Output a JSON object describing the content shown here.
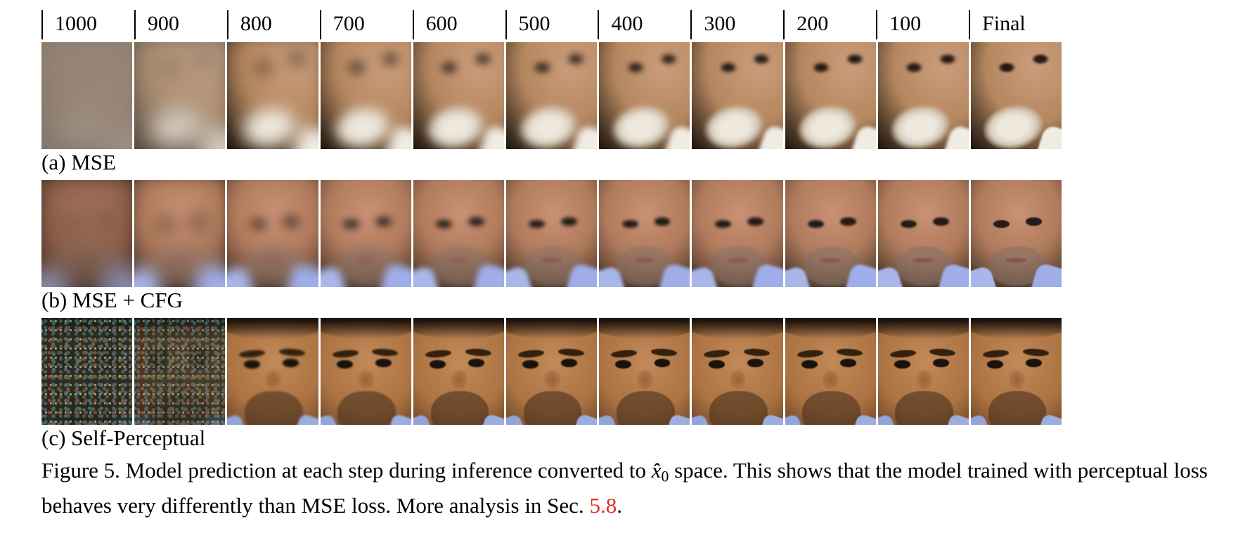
{
  "header": {
    "timesteps": [
      "1000",
      "900",
      "800",
      "700",
      "600",
      "500",
      "400",
      "300",
      "200",
      "100",
      "Final"
    ]
  },
  "rows": [
    {
      "id": "a",
      "label": "(a) MSE",
      "description": "Portrait sequence of an elderly man with a white mustache emerging from heavy blur; first frames are a uniform brown-gray haze",
      "blur": [
        18,
        14,
        11,
        8,
        6,
        5,
        4,
        3,
        2.5,
        2,
        1.2
      ],
      "wash": [
        "rgba(146,131,118,0.88)",
        "rgba(165,152,140,0.42)",
        null,
        null,
        null,
        null,
        null,
        null,
        null,
        null,
        null
      ],
      "noise": [
        0,
        0,
        0,
        0,
        0,
        0,
        0,
        0,
        0,
        0,
        0
      ]
    },
    {
      "id": "b",
      "label": "(b) MSE + CFG",
      "description": "Portrait sequence of a smiling man with shaved head, gray stubble and light-blue shirt emerging from dark blur",
      "blur": [
        16,
        12,
        8,
        5.5,
        4,
        3,
        2.5,
        2,
        1.6,
        1.3,
        0.8
      ],
      "wash": [
        "rgba(80,50,40,0.3)",
        null,
        null,
        null,
        null,
        null,
        null,
        null,
        null,
        null,
        null
      ],
      "noise": [
        0,
        0,
        0,
        0,
        0,
        0,
        0,
        0,
        0,
        0,
        0
      ]
    },
    {
      "id": "c",
      "label": "(c) Self-Perceptual",
      "description": "First two frames are mottled multicolor noise; from step 800 a sharp portrait of a dark-haired man with thick brows and beard stubble",
      "blur": [
        5,
        5,
        1.5,
        1,
        0.8,
        0.7,
        0.6,
        0.6,
        0.5,
        0.5,
        0.4
      ],
      "wash": [
        null,
        null,
        null,
        null,
        null,
        null,
        null,
        null,
        null,
        null,
        null
      ],
      "noise": [
        0.88,
        0.72,
        0,
        0,
        0,
        0,
        0,
        0,
        0,
        0,
        0
      ]
    }
  ],
  "caption": {
    "ref_color": "#e62b1e",
    "segments": [
      {
        "t": "Figure 5. Model prediction at each step during inference converted to "
      },
      {
        "t": "x̂",
        "style": "math"
      },
      {
        "t": "0",
        "style": "sub"
      },
      {
        "t": " space. This shows that the model trained with perceptual loss",
        "break": true
      },
      {
        "t": "behaves very differently than MSE loss. More analysis in Sec. "
      },
      {
        "t": "5.8",
        "style": "ref"
      },
      {
        "t": "."
      }
    ]
  }
}
